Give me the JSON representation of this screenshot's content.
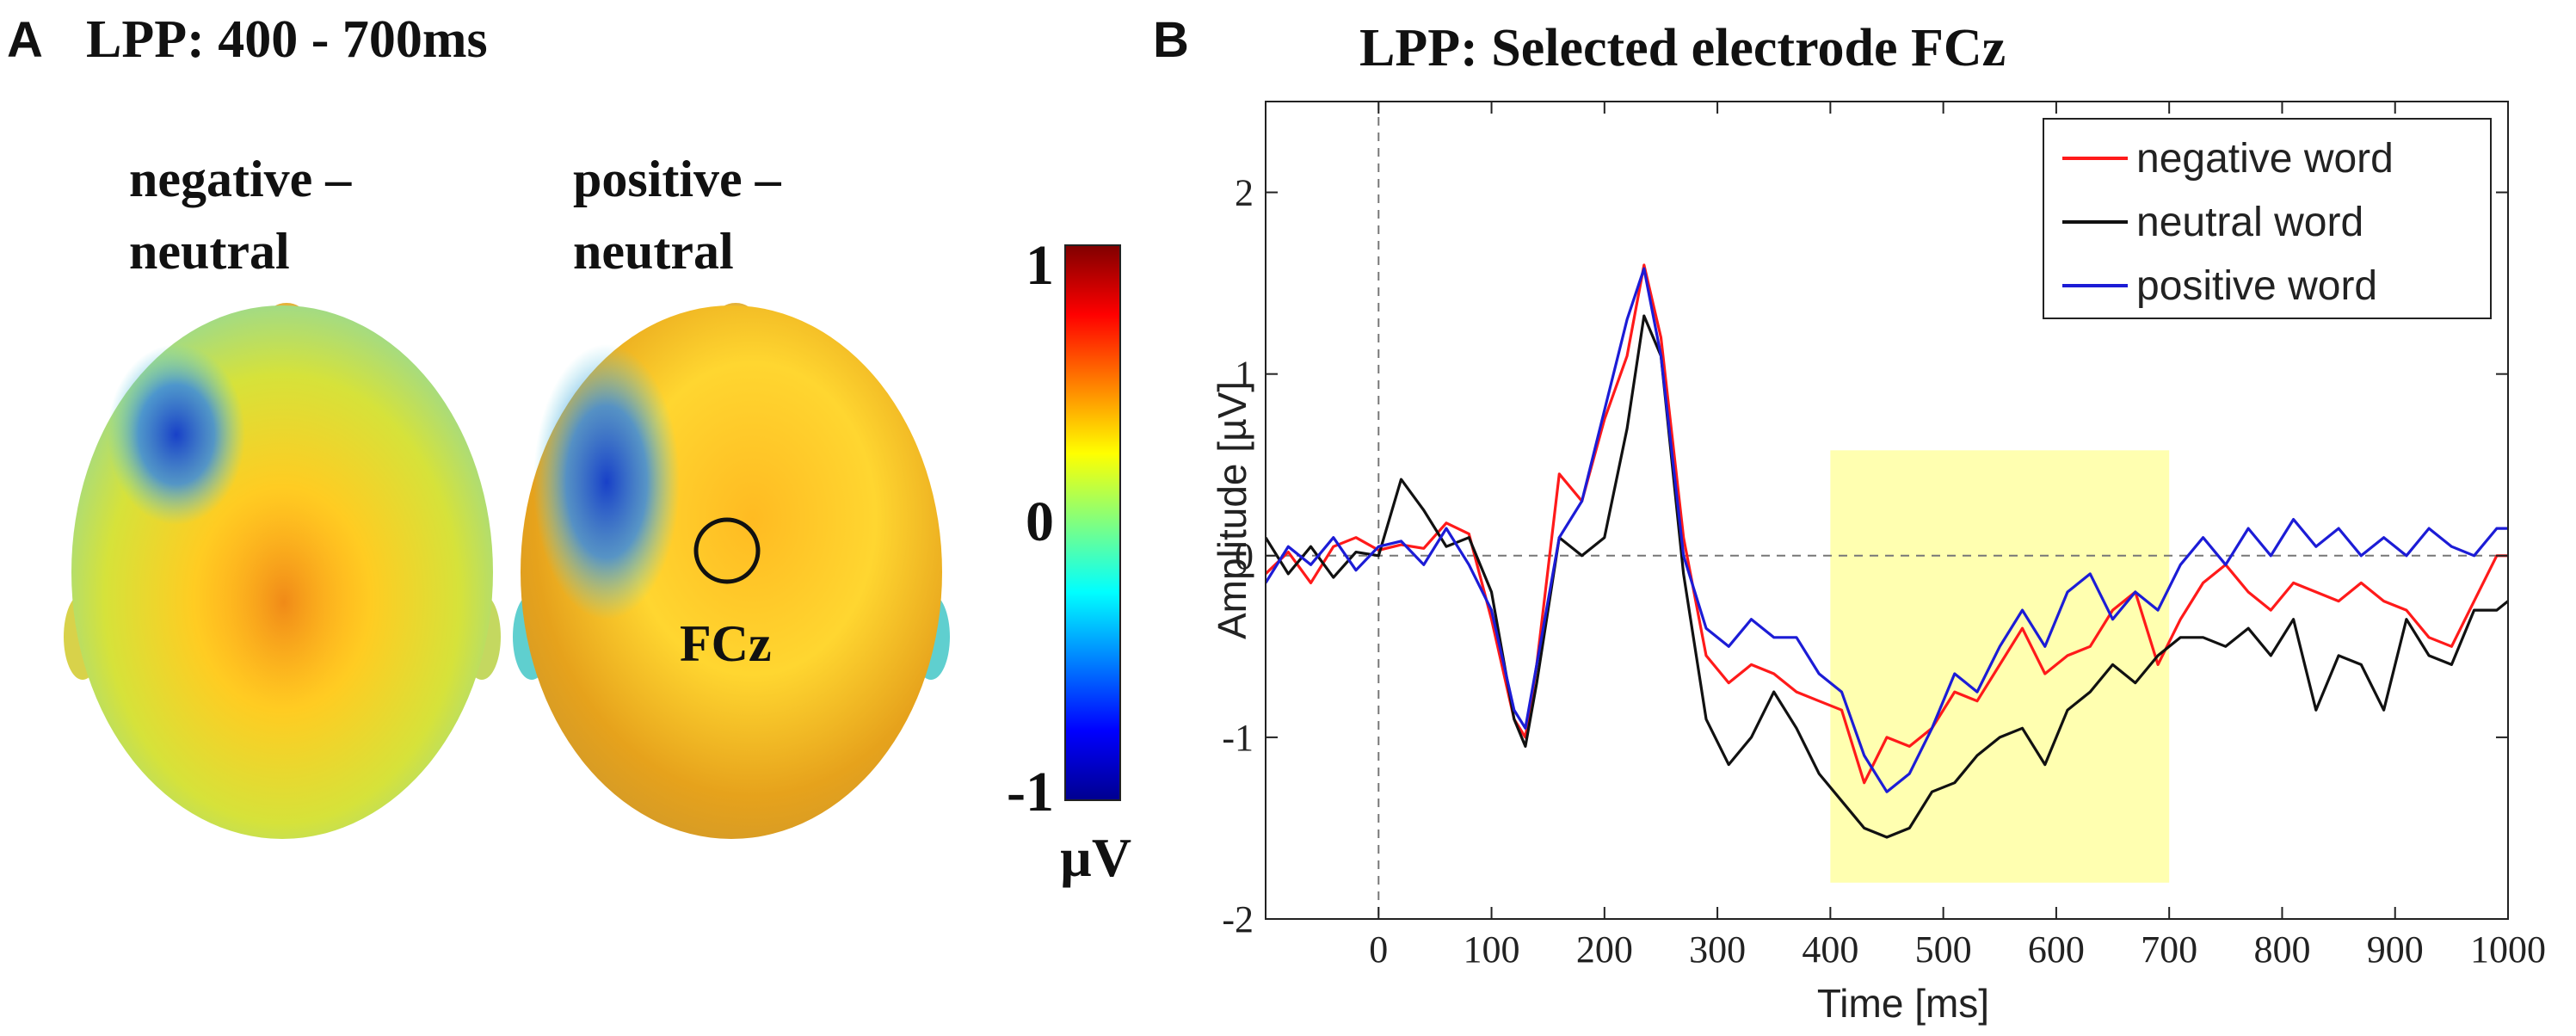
{
  "panelA": {
    "letter": "A",
    "title": "LPP: 400 - 700ms",
    "map1_label_line1": "negative –",
    "map1_label_line2": "neutral",
    "map2_label_line1": "positive –",
    "map2_label_line2": "neutral",
    "electrode_label": "FCz",
    "colorbar": {
      "max_label": "1",
      "mid_label": "0",
      "min_label": "-1",
      "unit": "µV",
      "colors": [
        "#00008f",
        "#0000ff",
        "#0080ff",
        "#00ffff",
        "#80ff80",
        "#ffff00",
        "#ff8000",
        "#ff0000",
        "#800000"
      ]
    }
  },
  "panelB": {
    "letter": "B",
    "title": "LPP: Selected electrode FCz"
  },
  "chart_data": {
    "type": "line",
    "title": "LPP: Selected electrode FCz",
    "xlabel": "Time [ms]",
    "ylabel": "Amplitude [µV]",
    "xlim": [
      -100,
      1000
    ],
    "ylim": [
      -2,
      2.5
    ],
    "xticks": [
      0,
      100,
      200,
      300,
      400,
      500,
      600,
      700,
      800,
      900,
      1000
    ],
    "yticks": [
      -2,
      -1,
      0,
      1,
      2
    ],
    "highlight": {
      "x0": 400,
      "x1": 700,
      "y0": -1.8,
      "y1": 0.58,
      "color": "#ffffb0"
    },
    "series": [
      {
        "name": "negative word",
        "color": "#ff1a1a",
        "x": [
          -100,
          -80,
          -60,
          -40,
          -20,
          0,
          20,
          40,
          60,
          80,
          100,
          120,
          130,
          140,
          160,
          180,
          200,
          220,
          235,
          250,
          270,
          290,
          310,
          330,
          350,
          370,
          390,
          410,
          430,
          450,
          470,
          490,
          510,
          530,
          550,
          570,
          590,
          610,
          630,
          650,
          670,
          690,
          710,
          730,
          750,
          770,
          790,
          810,
          830,
          850,
          870,
          890,
          910,
          930,
          950,
          970,
          990,
          1000
        ],
        "y": [
          -0.1,
          0.02,
          -0.15,
          0.05,
          0.1,
          0.03,
          0.06,
          0.04,
          0.18,
          0.12,
          -0.35,
          -0.9,
          -1.0,
          -0.6,
          0.45,
          0.3,
          0.75,
          1.1,
          1.6,
          1.2,
          0.1,
          -0.55,
          -0.7,
          -0.6,
          -0.65,
          -0.75,
          -0.8,
          -0.85,
          -1.25,
          -1.0,
          -1.05,
          -0.95,
          -0.75,
          -0.8,
          -0.6,
          -0.4,
          -0.65,
          -0.55,
          -0.5,
          -0.3,
          -0.2,
          -0.6,
          -0.35,
          -0.15,
          -0.05,
          -0.2,
          -0.3,
          -0.15,
          -0.2,
          -0.25,
          -0.15,
          -0.25,
          -0.3,
          -0.45,
          -0.5,
          -0.25,
          0.0,
          0.0
        ]
      },
      {
        "name": "neutral word",
        "color": "#111111",
        "x": [
          -100,
          -80,
          -60,
          -40,
          -20,
          0,
          20,
          40,
          60,
          80,
          100,
          120,
          130,
          140,
          160,
          180,
          200,
          220,
          235,
          250,
          270,
          290,
          310,
          330,
          350,
          370,
          390,
          410,
          430,
          450,
          470,
          490,
          510,
          530,
          550,
          570,
          590,
          610,
          630,
          650,
          670,
          690,
          710,
          730,
          750,
          770,
          790,
          810,
          830,
          850,
          870,
          890,
          910,
          930,
          950,
          970,
          990,
          1000
        ],
        "y": [
          0.1,
          -0.1,
          0.05,
          -0.12,
          0.02,
          0.0,
          0.42,
          0.25,
          0.05,
          0.1,
          -0.2,
          -0.9,
          -1.05,
          -0.7,
          0.1,
          0.0,
          0.1,
          0.7,
          1.32,
          1.1,
          -0.1,
          -0.9,
          -1.15,
          -1.0,
          -0.75,
          -0.95,
          -1.2,
          -1.35,
          -1.5,
          -1.55,
          -1.5,
          -1.3,
          -1.25,
          -1.1,
          -1.0,
          -0.95,
          -1.15,
          -0.85,
          -0.75,
          -0.6,
          -0.7,
          -0.55,
          -0.45,
          -0.45,
          -0.5,
          -0.4,
          -0.55,
          -0.35,
          -0.85,
          -0.55,
          -0.6,
          -0.85,
          -0.35,
          -0.55,
          -0.6,
          -0.3,
          -0.3,
          -0.25
        ]
      },
      {
        "name": "positive word",
        "color": "#1c1cd6",
        "x": [
          -100,
          -80,
          -60,
          -40,
          -20,
          0,
          20,
          40,
          60,
          80,
          100,
          120,
          130,
          140,
          160,
          180,
          200,
          220,
          235,
          250,
          270,
          290,
          310,
          330,
          350,
          370,
          390,
          410,
          430,
          450,
          470,
          490,
          510,
          530,
          550,
          570,
          590,
          610,
          630,
          650,
          670,
          690,
          710,
          730,
          750,
          770,
          790,
          810,
          830,
          850,
          870,
          890,
          910,
          930,
          950,
          970,
          990,
          1000
        ],
        "y": [
          -0.15,
          0.05,
          -0.05,
          0.1,
          -0.08,
          0.05,
          0.08,
          -0.05,
          0.15,
          -0.05,
          -0.3,
          -0.85,
          -0.95,
          -0.6,
          0.1,
          0.3,
          0.8,
          1.3,
          1.58,
          1.1,
          0.0,
          -0.4,
          -0.5,
          -0.35,
          -0.45,
          -0.45,
          -0.65,
          -0.75,
          -1.1,
          -1.3,
          -1.2,
          -0.95,
          -0.65,
          -0.75,
          -0.5,
          -0.3,
          -0.5,
          -0.2,
          -0.1,
          -0.35,
          -0.2,
          -0.3,
          -0.05,
          0.1,
          -0.05,
          0.15,
          0.0,
          0.2,
          0.05,
          0.15,
          0.0,
          0.1,
          0.0,
          0.15,
          0.05,
          0.0,
          0.15,
          0.15
        ]
      }
    ],
    "legend_position": "top-right"
  }
}
